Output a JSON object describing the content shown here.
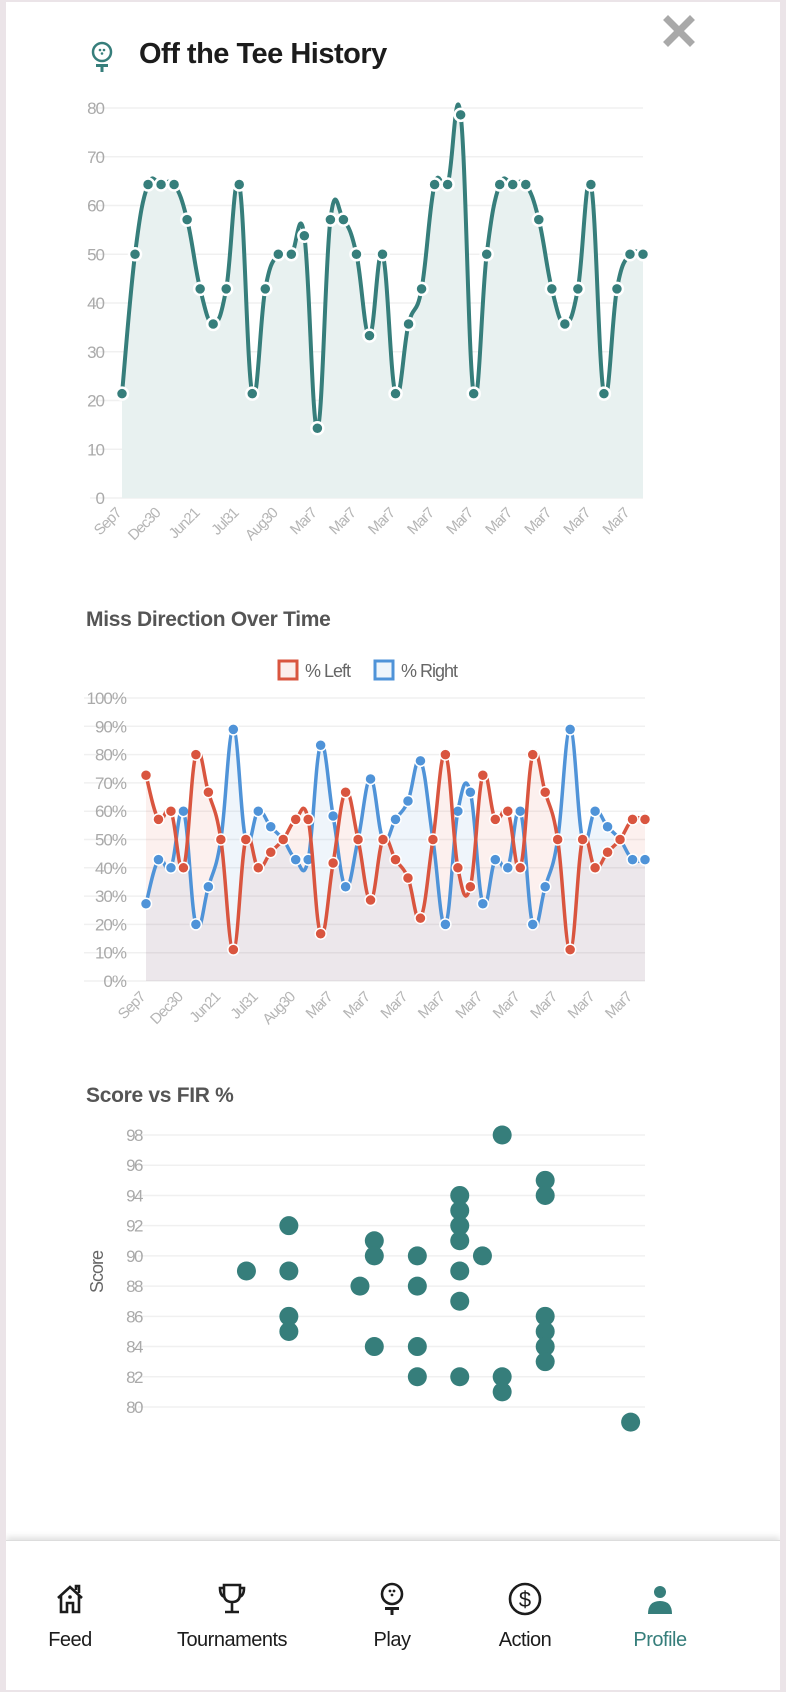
{
  "header": {
    "title": "Off the Tee History",
    "icon": "golf-ball-on-tee-icon",
    "close_icon": "close-icon"
  },
  "colors": {
    "teal": "#367e7b",
    "teal_fill": "#e8f1f0",
    "left": "#d9553f",
    "right": "#4f93d8",
    "active_nav": "#367e7b"
  },
  "chart_data": [
    {
      "type": "area",
      "title": "",
      "ylim": [
        0,
        80
      ],
      "y_ticks": [
        "0",
        "10",
        "20",
        "30",
        "40",
        "50",
        "60",
        "70",
        "80"
      ],
      "x_tick_labels": [
        "Sep7",
        "Dec30",
        "Jun21",
        "Jul31",
        "Aug30",
        "Mar7",
        "Mar7",
        "Mar7",
        "Mar7",
        "Mar7",
        "Mar7",
        "Mar7",
        "Mar7",
        "Mar7"
      ],
      "grid": true,
      "values": [
        21.4,
        50,
        64.3,
        64.3,
        64.3,
        57.1,
        42.9,
        35.7,
        42.9,
        64.3,
        21.4,
        42.9,
        50,
        50,
        53.8,
        14.3,
        57.1,
        57.1,
        50,
        33.3,
        50,
        21.4,
        35.7,
        42.9,
        64.3,
        64.3,
        78.6,
        21.4,
        50,
        64.3,
        64.3,
        64.3,
        57.1,
        42.9,
        35.7,
        42.9,
        64.3,
        21.4,
        42.9,
        50,
        50
      ]
    },
    {
      "type": "line",
      "title": "Miss Direction Over Time",
      "ylim": [
        0,
        100
      ],
      "y_ticks": [
        "0%",
        "10%",
        "20%",
        "30%",
        "40%",
        "50%",
        "60%",
        "70%",
        "80%",
        "90%",
        "100%"
      ],
      "x_tick_labels": [
        "Sep7",
        "Dec30",
        "Jun21",
        "Jul31",
        "Aug30",
        "Mar7",
        "Mar7",
        "Mar7",
        "Mar7",
        "Mar7",
        "Mar7",
        "Mar7",
        "Mar7",
        "Mar7"
      ],
      "legend": "top",
      "grid": true,
      "series": [
        {
          "name": "% Left",
          "color": "#d9553f",
          "values": [
            72.7,
            57.1,
            60,
            40,
            80,
            66.7,
            50,
            11.1,
            50,
            40,
            45.5,
            50,
            57.1,
            57.1,
            16.7,
            41.7,
            66.7,
            50,
            28.6,
            50,
            42.9,
            36.4,
            22.2,
            50,
            80,
            40,
            33.3,
            72.7,
            57.1,
            60,
            40,
            80,
            66.7,
            50,
            11.1,
            50,
            40,
            45.5,
            50,
            57.1,
            57.1
          ]
        },
        {
          "name": "% Right",
          "color": "#4f93d8",
          "values": [
            27.3,
            42.9,
            40,
            60,
            20,
            33.3,
            50,
            88.9,
            50,
            60,
            54.5,
            50,
            42.9,
            42.9,
            83.3,
            58.3,
            33.3,
            50,
            71.4,
            50,
            57.1,
            63.6,
            77.8,
            50,
            20,
            60,
            66.7,
            27.3,
            42.9,
            40,
            60,
            20,
            33.3,
            50,
            88.9,
            50,
            60,
            54.5,
            50,
            42.9,
            42.9
          ]
        }
      ]
    },
    {
      "type": "scatter",
      "title": "Score vs FIR %",
      "ylabel": "Score",
      "xlim": [
        0,
        80
      ],
      "ylim": [
        76,
        98.6
      ],
      "y_ticks": [
        "80",
        "82",
        "84",
        "86",
        "88",
        "90",
        "92",
        "94",
        "96",
        "98"
      ],
      "grid": true,
      "points": [
        [
          14.3,
          89
        ],
        [
          21.4,
          92
        ],
        [
          21.4,
          89
        ],
        [
          21.4,
          86
        ],
        [
          21.4,
          85
        ],
        [
          33.3,
          88
        ],
        [
          35.7,
          91
        ],
        [
          35.7,
          90
        ],
        [
          35.7,
          84
        ],
        [
          42.9,
          90
        ],
        [
          42.9,
          88
        ],
        [
          42.9,
          84
        ],
        [
          42.9,
          82
        ],
        [
          50,
          94
        ],
        [
          50,
          93
        ],
        [
          50,
          92
        ],
        [
          50,
          91
        ],
        [
          50,
          89
        ],
        [
          50,
          87
        ],
        [
          50,
          82
        ],
        [
          53.8,
          90
        ],
        [
          57.1,
          98
        ],
        [
          57.1,
          82
        ],
        [
          57.1,
          81
        ],
        [
          64.3,
          95
        ],
        [
          64.3,
          94
        ],
        [
          64.3,
          86
        ],
        [
          64.3,
          85
        ],
        [
          64.3,
          84
        ],
        [
          64.3,
          83
        ],
        [
          78.6,
          79
        ]
      ]
    }
  ],
  "nav": {
    "items": [
      {
        "label": "Feed",
        "icon": "home-icon"
      },
      {
        "label": "Tournaments",
        "icon": "trophy-icon"
      },
      {
        "label": "Play",
        "icon": "golf-ball-on-tee-icon"
      },
      {
        "label": "Action",
        "icon": "dollar-circle-icon"
      },
      {
        "label": "Profile",
        "icon": "person-icon",
        "active": true
      }
    ]
  }
}
